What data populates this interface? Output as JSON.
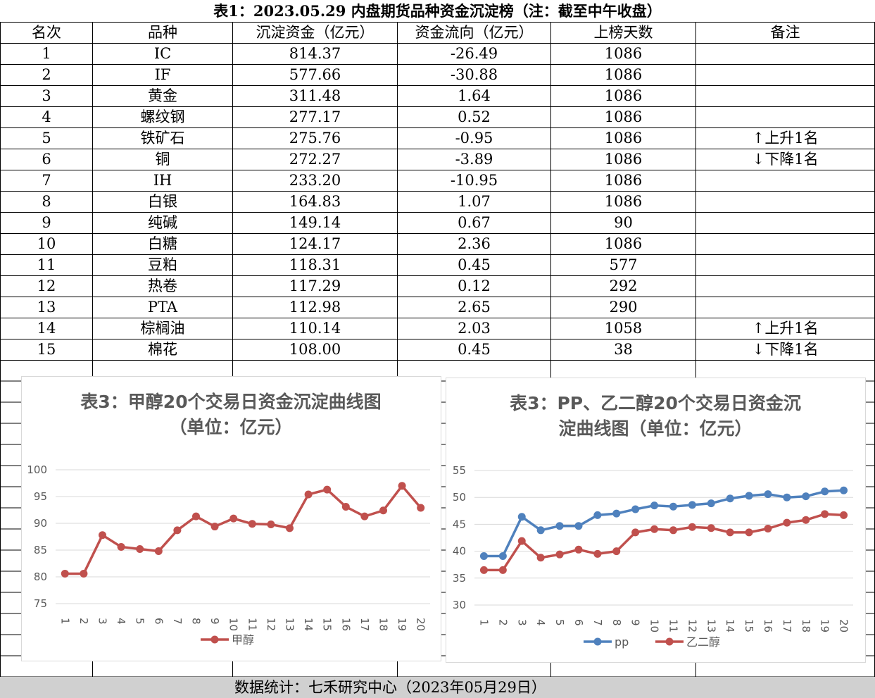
{
  "table_title": "表1：2023.05.29 内盘期货品种资金沉淀榜（注：截至中午收盘）",
  "columns": [
    "名次",
    "品种",
    "沉淀资金（亿元）",
    "资金流向（亿元）",
    "上榜天数",
    "备注"
  ],
  "rows": [
    {
      "rank": "1",
      "name": "IC",
      "fund": "814.37",
      "flow": "-26.49",
      "days": "1086",
      "note": "",
      "arrow": ""
    },
    {
      "rank": "2",
      "name": "IF",
      "fund": "577.66",
      "flow": "-30.88",
      "days": "1086",
      "note": "",
      "arrow": ""
    },
    {
      "rank": "3",
      "name": "黄金",
      "fund": "311.48",
      "flow": "1.64",
      "days": "1086",
      "note": "",
      "arrow": ""
    },
    {
      "rank": "4",
      "name": "螺纹钢",
      "fund": "277.17",
      "flow": "0.52",
      "days": "1086",
      "note": "",
      "arrow": ""
    },
    {
      "rank": "5",
      "name": "铁矿石",
      "fund": "275.76",
      "flow": "-0.95",
      "days": "1086",
      "note": "上升1名",
      "arrow": "↑"
    },
    {
      "rank": "6",
      "name": "铜",
      "fund": "272.27",
      "flow": "-3.89",
      "days": "1086",
      "note": "下降1名",
      "arrow": "↓"
    },
    {
      "rank": "7",
      "name": "IH",
      "fund": "233.20",
      "flow": "-10.95",
      "days": "1086",
      "note": "",
      "arrow": ""
    },
    {
      "rank": "8",
      "name": "白银",
      "fund": "164.83",
      "flow": "1.07",
      "days": "1086",
      "note": "",
      "arrow": ""
    },
    {
      "rank": "9",
      "name": "纯碱",
      "fund": "149.14",
      "flow": "0.67",
      "days": "90",
      "note": "",
      "arrow": ""
    },
    {
      "rank": "10",
      "name": "白糖",
      "fund": "124.17",
      "flow": "2.36",
      "days": "1086",
      "note": "",
      "arrow": ""
    },
    {
      "rank": "11",
      "name": "豆粕",
      "fund": "118.31",
      "flow": "0.45",
      "days": "577",
      "note": "",
      "arrow": ""
    },
    {
      "rank": "12",
      "name": "热卷",
      "fund": "117.29",
      "flow": "0.12",
      "days": "292",
      "note": "",
      "arrow": ""
    },
    {
      "rank": "13",
      "name": "PTA",
      "fund": "112.98",
      "flow": "2.65",
      "days": "290",
      "note": "",
      "arrow": ""
    },
    {
      "rank": "14",
      "name": "棕榈油",
      "fund": "110.14",
      "flow": "2.03",
      "days": "1058",
      "note": "上升1名",
      "arrow": "↑"
    },
    {
      "rank": "15",
      "name": "棉花",
      "fund": "108.00",
      "flow": "0.45",
      "days": "38",
      "note": "下降1名",
      "arrow": "↓"
    }
  ],
  "footer": "数据统计：七禾研究中心（2023年05月29日）",
  "chart_data": [
    {
      "type": "line",
      "title_lines": [
        "表3：甲醇20个交易日资金沉淀曲线图",
        "（单位：亿元）"
      ],
      "x": [
        "1",
        "2",
        "3",
        "4",
        "5",
        "6",
        "7",
        "8",
        "9",
        "10",
        "11",
        "12",
        "13",
        "14",
        "15",
        "16",
        "17",
        "18",
        "19",
        "20"
      ],
      "ylim": [
        75,
        100
      ],
      "yticks": [
        75,
        80,
        85,
        90,
        95,
        100
      ],
      "grid": true,
      "legend_position": "bottom",
      "series": [
        {
          "name": "甲醇",
          "color": "#c0504d",
          "values": [
            80.6,
            80.6,
            87.8,
            85.6,
            85.2,
            84.8,
            88.7,
            91.3,
            89.4,
            90.9,
            89.9,
            89.8,
            89.1,
            95.4,
            96.3,
            93.1,
            91.3,
            92.4,
            97.0,
            92.9
          ]
        }
      ]
    },
    {
      "type": "line",
      "title_lines": [
        "表3：PP、乙二醇20个交易日资金沉",
        "淀曲线图（单位：亿元）"
      ],
      "x": [
        "1",
        "2",
        "3",
        "4",
        "5",
        "6",
        "7",
        "8",
        "9",
        "10",
        "11",
        "12",
        "13",
        "14",
        "15",
        "16",
        "17",
        "18",
        "19",
        "20"
      ],
      "ylim": [
        30,
        55
      ],
      "yticks": [
        30,
        35,
        40,
        45,
        50,
        55
      ],
      "grid": true,
      "legend_position": "bottom",
      "series": [
        {
          "name": "pp",
          "color": "#4f81bd",
          "values": [
            39.1,
            39.1,
            46.4,
            43.9,
            44.7,
            44.7,
            46.7,
            47.0,
            47.8,
            48.5,
            48.3,
            48.6,
            48.9,
            49.8,
            50.3,
            50.6,
            50.0,
            50.2,
            51.1,
            51.3
          ]
        },
        {
          "name": "乙二醇",
          "color": "#c0504d",
          "values": [
            36.5,
            36.5,
            41.9,
            38.8,
            39.4,
            40.3,
            39.5,
            40.0,
            43.5,
            44.1,
            43.9,
            44.5,
            44.3,
            43.5,
            43.5,
            44.2,
            45.3,
            45.8,
            46.9,
            46.7
          ]
        }
      ]
    }
  ]
}
